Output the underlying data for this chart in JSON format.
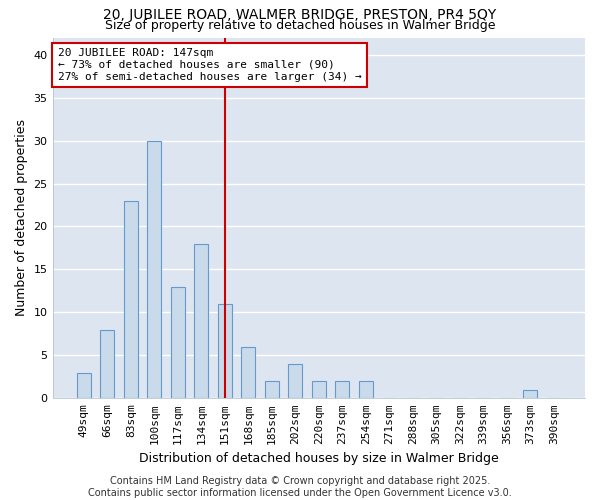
{
  "title": "20, JUBILEE ROAD, WALMER BRIDGE, PRESTON, PR4 5QY",
  "subtitle": "Size of property relative to detached houses in Walmer Bridge",
  "xlabel": "Distribution of detached houses by size in Walmer Bridge",
  "ylabel": "Number of detached properties",
  "categories": [
    "49sqm",
    "66sqm",
    "83sqm",
    "100sqm",
    "117sqm",
    "134sqm",
    "151sqm",
    "168sqm",
    "185sqm",
    "202sqm",
    "220sqm",
    "237sqm",
    "254sqm",
    "271sqm",
    "288sqm",
    "305sqm",
    "322sqm",
    "339sqm",
    "356sqm",
    "373sqm",
    "390sqm"
  ],
  "values": [
    3,
    8,
    23,
    30,
    13,
    18,
    11,
    6,
    2,
    4,
    2,
    2,
    2,
    0,
    0,
    0,
    0,
    0,
    0,
    1,
    0
  ],
  "bar_color": "#c9daea",
  "bar_edge_color": "#6699cc",
  "plot_bg_color": "#dde5f0",
  "fig_bg_color": "#ffffff",
  "grid_color": "#ffffff",
  "vline_x_index": 6,
  "vline_color": "#cc0000",
  "annotation_text": "20 JUBILEE ROAD: 147sqm\n← 73% of detached houses are smaller (90)\n27% of semi-detached houses are larger (34) →",
  "annotation_box_color": "#ffffff",
  "annotation_box_edge_color": "#cc0000",
  "ylim": [
    0,
    42
  ],
  "yticks": [
    0,
    5,
    10,
    15,
    20,
    25,
    30,
    35,
    40
  ],
  "footer": "Contains HM Land Registry data © Crown copyright and database right 2025.\nContains public sector information licensed under the Open Government Licence v3.0.",
  "title_fontsize": 10,
  "subtitle_fontsize": 9,
  "axis_label_fontsize": 9,
  "tick_fontsize": 8,
  "annotation_fontsize": 8,
  "footer_fontsize": 7
}
